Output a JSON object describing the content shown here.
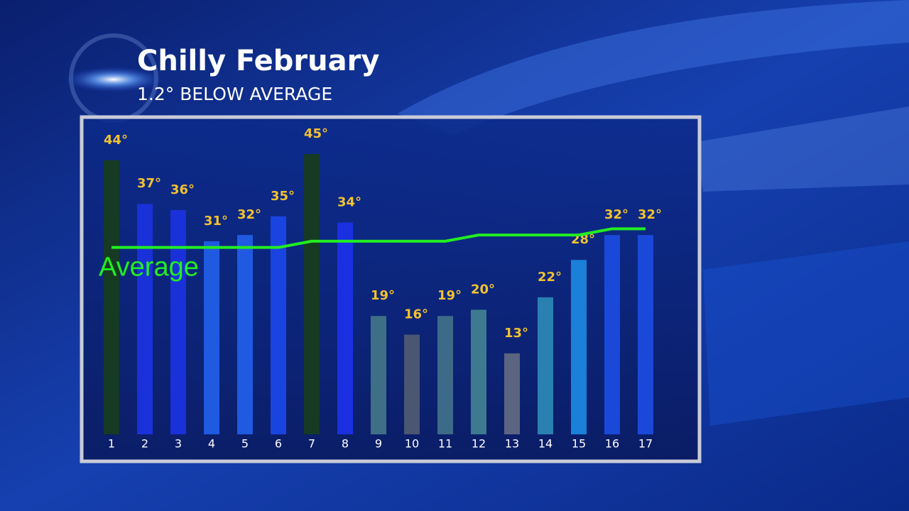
{
  "chart_data": {
    "type": "bar",
    "title": "Chilly February",
    "subtitle": "1.2° BELOW AVERAGE",
    "categories": [
      "1",
      "2",
      "3",
      "4",
      "5",
      "6",
      "7",
      "8",
      "9",
      "10",
      "11",
      "12",
      "13",
      "14",
      "15",
      "16",
      "17"
    ],
    "values": [
      44,
      37,
      36,
      31,
      32,
      35,
      45,
      34,
      19,
      16,
      19,
      20,
      13,
      22,
      28,
      32,
      32
    ],
    "value_labels": [
      "44°",
      "37°",
      "36°",
      "31°",
      "32°",
      "35°",
      "45°",
      "34°",
      "19°",
      "16°",
      "19°",
      "20°",
      "13°",
      "22°",
      "28°",
      "32°",
      "32°"
    ],
    "colors": [
      "#163a24",
      "#1a30d8",
      "#1a30d8",
      "#1f5ae0",
      "#1f5ae0",
      "#1a44e0",
      "#163a24",
      "#1a30e0",
      "#3f6f86",
      "#4a5672",
      "#3d6a88",
      "#3d7a90",
      "#5b6480",
      "#2a80b0",
      "#1a80d8",
      "#1a48d8",
      "#1a48d8"
    ],
    "series": [
      {
        "name": "Average",
        "color": "#22ee22",
        "values": [
          30,
          30,
          30,
          30,
          30,
          30,
          31,
          31,
          31,
          31,
          31,
          32,
          32,
          32,
          32,
          33,
          33
        ]
      }
    ]
  }
}
